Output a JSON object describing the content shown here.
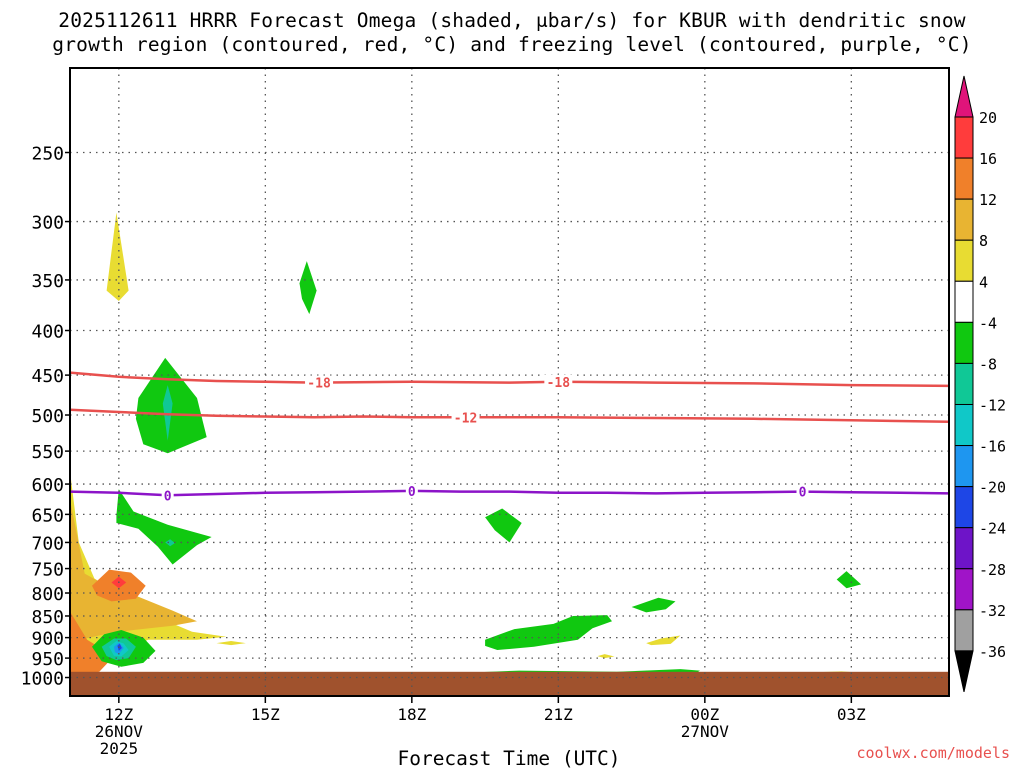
{
  "title_line1": "2025112611 HRRR Forecast Omega (shaded, μbar/s) for KBUR with dendritic snow",
  "title_line2": "growth region (contoured, red, °C) and freezing level (contoured, purple, °C)",
  "credit": "coolwx.com/models",
  "chart_data": {
    "type": "heatmap",
    "title": "2025112611 HRRR Forecast Omega (shaded, μbar/s) for KBUR with dendritic snow growth region (contoured, red, °C) and freezing level (contoured, purple, °C)",
    "xlabel": "Forecast Time (UTC)",
    "ylabel": "",
    "xlim_hours_since_11Z": [
      0,
      18
    ],
    "ylim_hPa": [
      1000,
      200
    ],
    "y_scale": "log-pressure",
    "grid": true,
    "x_ticks": [
      {
        "hour": 1,
        "label": "12Z",
        "sub1": "26NOV",
        "sub2": "2025"
      },
      {
        "hour": 4,
        "label": "15Z",
        "sub1": "",
        "sub2": ""
      },
      {
        "hour": 7,
        "label": "18Z",
        "sub1": "",
        "sub2": ""
      },
      {
        "hour": 10,
        "label": "21Z",
        "sub1": "",
        "sub2": ""
      },
      {
        "hour": 13,
        "label": "00Z",
        "sub1": "27NOV",
        "sub2": ""
      },
      {
        "hour": 16,
        "label": "03Z",
        "sub1": "",
        "sub2": ""
      }
    ],
    "y_ticks": [
      250,
      300,
      350,
      400,
      450,
      500,
      550,
      600,
      650,
      700,
      750,
      800,
      850,
      900,
      950,
      1000
    ],
    "colorbar": {
      "levels": [
        20,
        16,
        12,
        8,
        4,
        -4,
        -8,
        -12,
        -16,
        -20,
        -24,
        -28,
        -32,
        -36
      ],
      "colors": [
        "#e0147a",
        "#ff3c3c",
        "#f0802a",
        "#e8b432",
        "#e8dc32",
        "#ffffff",
        "#10c810",
        "#10c896",
        "#10c8c8",
        "#1e96f0",
        "#1e46e6",
        "#6e14c8",
        "#a014c8",
        "#a0a0a0",
        "#000000"
      ]
    },
    "omega_regions": [
      {
        "color": "#e8dc32",
        "pts": [
          [
            0,
            580
          ],
          [
            0.18,
            700
          ],
          [
            0.5,
            770
          ],
          [
            1.2,
            815
          ],
          [
            1.9,
            858
          ],
          [
            2.5,
            886
          ],
          [
            3.2,
            898
          ],
          [
            2.6,
            905
          ],
          [
            1.6,
            905
          ],
          [
            0.8,
            950
          ],
          [
            0,
            990
          ]
        ]
      },
      {
        "color": "#e8b432",
        "pts": [
          [
            0,
            625
          ],
          [
            0.3,
            760
          ],
          [
            0.75,
            785
          ],
          [
            1.4,
            808
          ],
          [
            2.1,
            838
          ],
          [
            2.6,
            862
          ],
          [
            2.1,
            872
          ],
          [
            1.3,
            882
          ],
          [
            0.8,
            890
          ],
          [
            0.2,
            905
          ],
          [
            0,
            925
          ]
        ]
      },
      {
        "color": "#f0802a",
        "pts": [
          [
            0,
            840
          ],
          [
            0.35,
            905
          ],
          [
            0.9,
            945
          ],
          [
            0.6,
            985
          ],
          [
            0,
            1000
          ]
        ]
      },
      {
        "color": "#f0802a",
        "pts": [
          [
            0.45,
            785
          ],
          [
            0.8,
            752
          ],
          [
            1.25,
            758
          ],
          [
            1.55,
            785
          ],
          [
            1.35,
            812
          ],
          [
            0.85,
            818
          ],
          [
            0.55,
            805
          ]
        ]
      },
      {
        "color": "#ff3c3c",
        "pts": [
          [
            0.85,
            778
          ],
          [
            1.0,
            766
          ],
          [
            1.15,
            778
          ],
          [
            1.0,
            790
          ]
        ]
      },
      {
        "color": "#10c810",
        "pts": [
          [
            0.45,
            922
          ],
          [
            0.7,
            892
          ],
          [
            1.05,
            882
          ],
          [
            1.5,
            900
          ],
          [
            1.75,
            932
          ],
          [
            1.5,
            962
          ],
          [
            1.05,
            972
          ],
          [
            0.65,
            958
          ]
        ]
      },
      {
        "color": "#10c896",
        "pts": [
          [
            0.65,
            922
          ],
          [
            0.9,
            902
          ],
          [
            1.15,
            902
          ],
          [
            1.35,
            922
          ],
          [
            1.2,
            950
          ],
          [
            0.95,
            955
          ],
          [
            0.75,
            945
          ]
        ]
      },
      {
        "color": "#10c8c8",
        "pts": [
          [
            0.8,
            922
          ],
          [
            0.95,
            908
          ],
          [
            1.1,
            914
          ],
          [
            1.2,
            930
          ],
          [
            1.05,
            946
          ],
          [
            0.9,
            944
          ]
        ]
      },
      {
        "color": "#1e96f0",
        "pts": [
          [
            0.9,
            922
          ],
          [
            1.0,
            912
          ],
          [
            1.1,
            925
          ],
          [
            1.0,
            940
          ],
          [
            0.92,
            935
          ]
        ]
      },
      {
        "color": "#1e46e6",
        "pts": [
          [
            0.97,
            920
          ],
          [
            1.02,
            914
          ],
          [
            1.06,
            925
          ],
          [
            1.0,
            932
          ]
        ]
      },
      {
        "color": "#e8dc32",
        "pts": [
          [
            0.75,
            360
          ],
          [
            0.95,
            293
          ],
          [
            1.2,
            360
          ],
          [
            1.0,
            370
          ]
        ]
      },
      {
        "color": "#10c810",
        "pts": [
          [
            1.4,
            478
          ],
          [
            1.95,
            430
          ],
          [
            2.6,
            478
          ],
          [
            2.8,
            530
          ],
          [
            2.0,
            553
          ],
          [
            1.5,
            540
          ],
          [
            1.35,
            505
          ]
        ]
      },
      {
        "color": "#10c896",
        "pts": [
          [
            1.9,
            485
          ],
          [
            2.0,
            462
          ],
          [
            2.1,
            485
          ],
          [
            2.0,
            535
          ]
        ]
      },
      {
        "color": "#10c810",
        "pts": [
          [
            0.95,
            652
          ],
          [
            1.0,
            608
          ],
          [
            1.3,
            645
          ],
          [
            2.0,
            668
          ],
          [
            2.9,
            690
          ],
          [
            2.6,
            705
          ],
          [
            2.1,
            742
          ],
          [
            1.8,
            708
          ],
          [
            1.4,
            675
          ],
          [
            0.95,
            665
          ]
        ]
      },
      {
        "color": "#10c896",
        "pts": [
          [
            1.95,
            700
          ],
          [
            2.05,
            694
          ],
          [
            2.15,
            701
          ],
          [
            2.05,
            707
          ]
        ]
      },
      {
        "color": "#e8dc32",
        "pts": [
          [
            3.0,
            913
          ],
          [
            3.3,
            908
          ],
          [
            3.6,
            913
          ],
          [
            3.3,
            918
          ]
        ]
      },
      {
        "color": "#10c810",
        "pts": [
          [
            4.7,
            353
          ],
          [
            4.85,
            333
          ],
          [
            5.05,
            360
          ],
          [
            4.9,
            383
          ],
          [
            4.75,
            368
          ]
        ]
      },
      {
        "color": "#10c810",
        "pts": [
          [
            8.5,
            655
          ],
          [
            8.85,
            640
          ],
          [
            9.25,
            665
          ],
          [
            9.0,
            700
          ],
          [
            8.7,
            678
          ]
        ]
      },
      {
        "color": "#10c810",
        "pts": [
          [
            8.5,
            905
          ],
          [
            9.1,
            880
          ],
          [
            9.9,
            868
          ],
          [
            10.3,
            850
          ],
          [
            11.0,
            848
          ],
          [
            11.1,
            862
          ],
          [
            10.7,
            878
          ],
          [
            10.4,
            905
          ],
          [
            9.5,
            922
          ],
          [
            8.75,
            930
          ],
          [
            8.5,
            920
          ]
        ]
      },
      {
        "color": "#10c810",
        "pts": [
          [
            11.5,
            830
          ],
          [
            12.05,
            810
          ],
          [
            12.4,
            818
          ],
          [
            12.2,
            835
          ],
          [
            11.8,
            842
          ]
        ]
      },
      {
        "color": "#e8dc32",
        "pts": [
          [
            11.8,
            913
          ],
          [
            12.1,
            902
          ],
          [
            12.5,
            895
          ],
          [
            12.3,
            915
          ],
          [
            11.9,
            918
          ]
        ]
      },
      {
        "color": "#e8dc32",
        "pts": [
          [
            10.8,
            945
          ],
          [
            10.95,
            940
          ],
          [
            11.15,
            946
          ],
          [
            10.95,
            950
          ]
        ]
      },
      {
        "color": "#10c810",
        "pts": [
          [
            15.7,
            772
          ],
          [
            15.9,
            755
          ],
          [
            16.2,
            782
          ],
          [
            15.9,
            790
          ]
        ]
      },
      {
        "color": "#10c810",
        "pts": [
          [
            7.6,
            990
          ],
          [
            9.2,
            982
          ],
          [
            11.2,
            985
          ],
          [
            12.5,
            978
          ],
          [
            12.9,
            982
          ],
          [
            12.8,
            990
          ],
          [
            7.6,
            992
          ]
        ]
      },
      {
        "color": "#e8dc32",
        "pts": [
          [
            4.2,
            988
          ],
          [
            5.0,
            986
          ],
          [
            5.2,
            989
          ],
          [
            4.2,
            990
          ]
        ]
      },
      {
        "color": "#e8dc32",
        "pts": [
          [
            14.8,
            988
          ],
          [
            15.8,
            984
          ],
          [
            16.3,
            988
          ],
          [
            14.8,
            990
          ]
        ]
      }
    ],
    "contours": [
      {
        "name": "-18",
        "color": "#e8504e",
        "label": "-18",
        "pts": [
          [
            0,
            447
          ],
          [
            1,
            452
          ],
          [
            2,
            455
          ],
          [
            3,
            457
          ],
          [
            4,
            458
          ],
          [
            5,
            459
          ],
          [
            7,
            458
          ],
          [
            9,
            459
          ],
          [
            10,
            458
          ],
          [
            12,
            459
          ],
          [
            14,
            460
          ],
          [
            16,
            462
          ],
          [
            18,
            463
          ]
        ],
        "label_hours": [
          5.1,
          10.0
        ]
      },
      {
        "name": "-12",
        "color": "#e8504e",
        "label": "-12",
        "pts": [
          [
            0,
            493
          ],
          [
            1,
            496
          ],
          [
            2,
            499
          ],
          [
            3,
            501
          ],
          [
            4,
            502
          ],
          [
            5,
            503
          ],
          [
            6,
            502
          ],
          [
            7,
            503
          ],
          [
            8,
            503
          ],
          [
            10,
            503
          ],
          [
            12,
            504
          ],
          [
            14,
            505
          ],
          [
            16,
            507
          ],
          [
            18,
            509
          ]
        ],
        "label_hours": [
          8.1
        ]
      },
      {
        "name": "0",
        "color": "#8c14c8",
        "label": "0",
        "pts": [
          [
            0,
            612
          ],
          [
            1,
            614
          ],
          [
            2,
            618
          ],
          [
            3,
            616
          ],
          [
            4,
            614
          ],
          [
            5,
            613
          ],
          [
            6,
            612
          ],
          [
            7,
            611
          ],
          [
            8,
            612
          ],
          [
            9,
            612
          ],
          [
            10,
            614
          ],
          [
            11,
            614
          ],
          [
            12,
            615
          ],
          [
            13,
            614
          ],
          [
            14,
            613
          ],
          [
            15,
            612
          ],
          [
            16,
            613
          ],
          [
            17,
            614
          ],
          [
            18,
            615
          ]
        ],
        "label_hours": [
          2.0,
          7.0,
          15.0
        ]
      }
    ],
    "ground_below_hPa": 985,
    "ground_color": "#a0522d"
  }
}
